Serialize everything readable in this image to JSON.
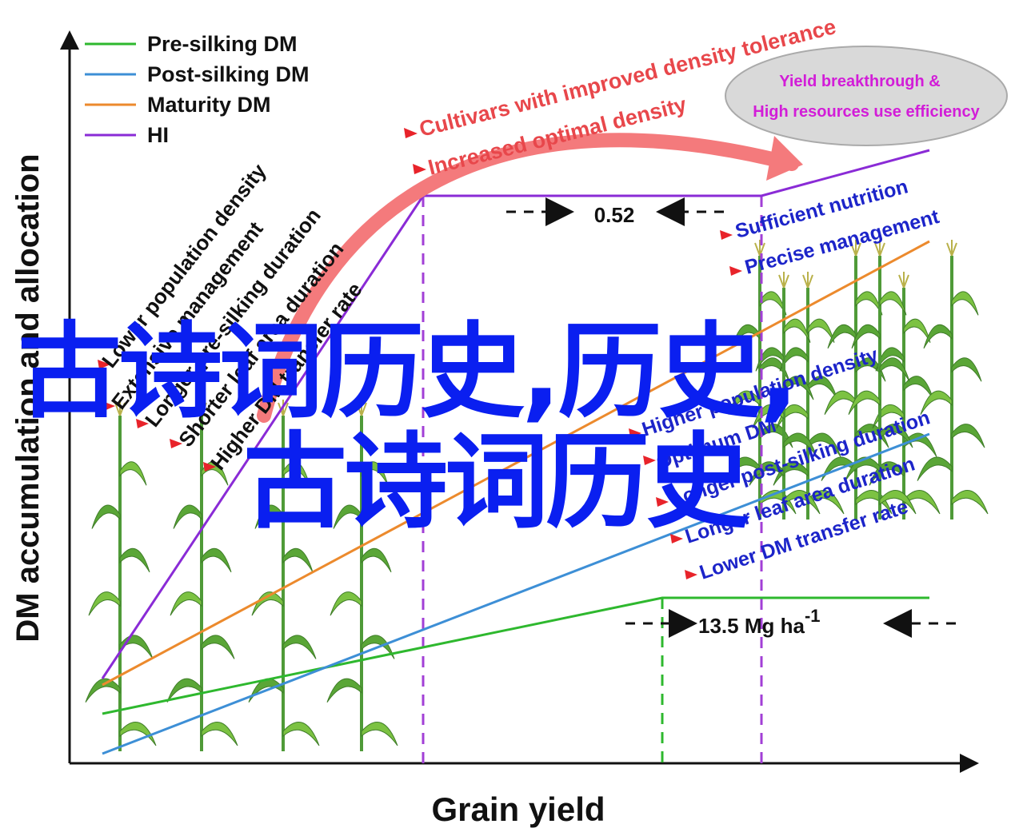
{
  "axes": {
    "ylabel": "DM accumulation and allocation",
    "xlabel": "Grain yield"
  },
  "legend": [
    {
      "label": "Pre-silking DM",
      "color": "#2eb82e"
    },
    {
      "label": "Post-silking DM",
      "color": "#3d8fd6"
    },
    {
      "label": "Maturity DM",
      "color": "#ec8a2d"
    },
    {
      "label": "HI",
      "color": "#8a2bd6"
    }
  ],
  "left_factors": [
    "Lower population density",
    "Extensive management",
    "Longer pre-silking duration",
    "Shorter leaf area duration",
    "Higher DM transfer rate"
  ],
  "right_factors": [
    "Higher population density",
    "Optimum DM",
    "Longer post-silking duration",
    "Longer leaf area duration",
    "Lower DM transfer rate"
  ],
  "top_factors": [
    "Cultivars with improved density tolerance",
    "Increased optimal density"
  ],
  "right_top_factors": [
    "Sufficient nutrition",
    "Precise management"
  ],
  "goal_ellipse": {
    "line1": "Yield breakthrough &",
    "line2": "High resources use efficiency"
  },
  "measurements": {
    "hi_value": "0.52",
    "mg_value": "13.5 Mg ha",
    "mg_exponent": "-1"
  },
  "overlay_text": {
    "line1": "古诗词历史,历史,",
    "line2": "古诗词历史"
  }
}
